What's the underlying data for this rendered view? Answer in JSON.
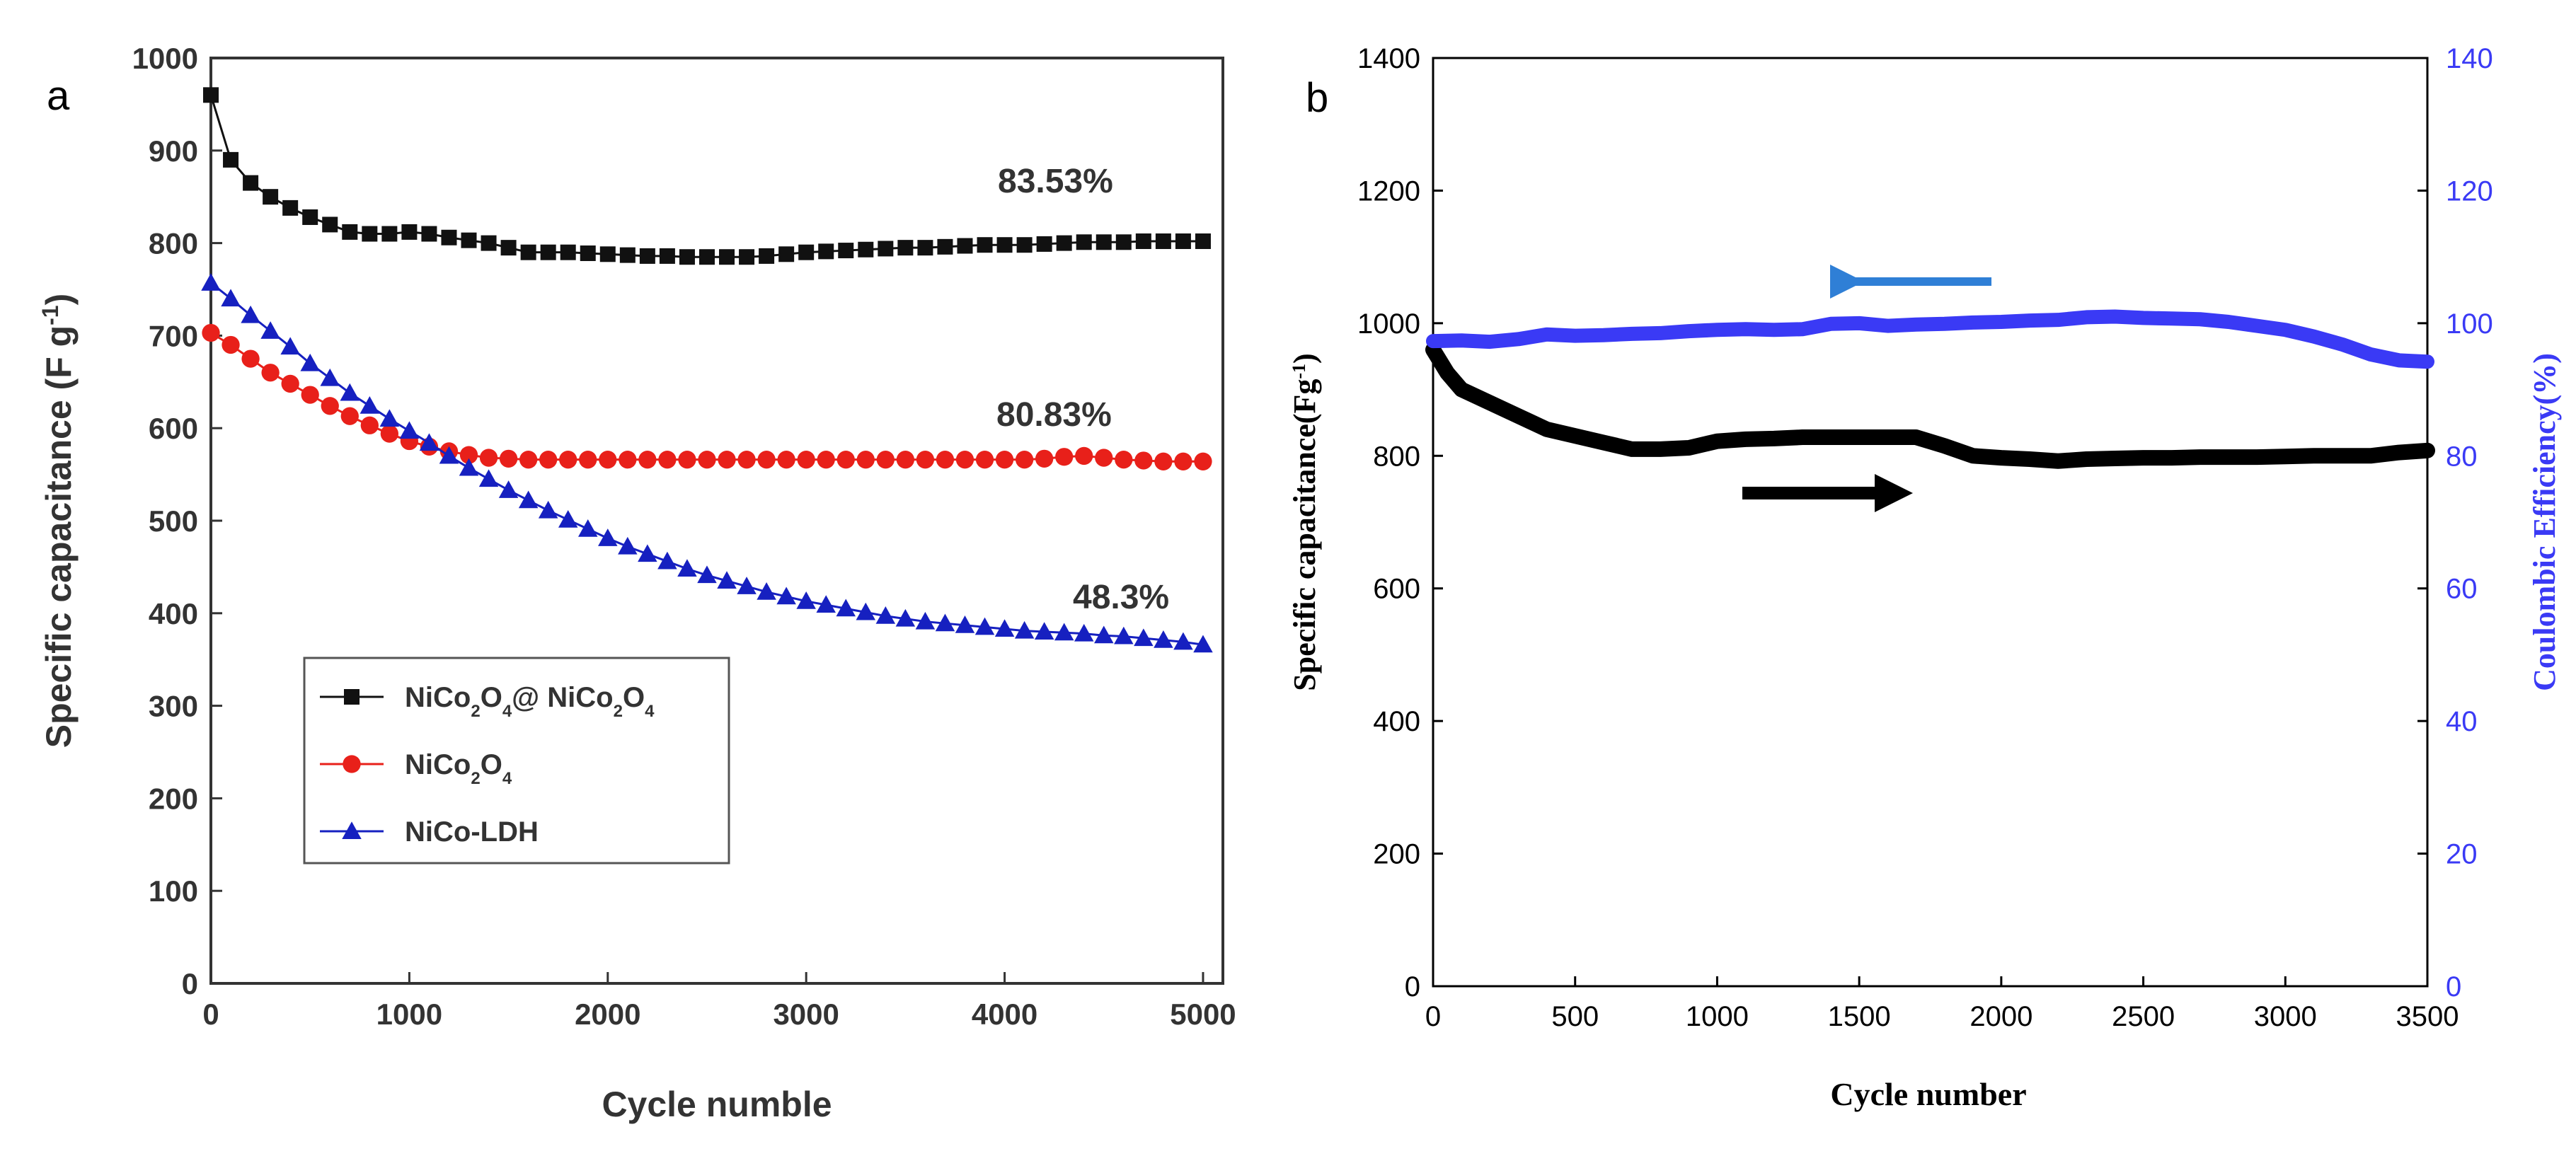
{
  "chart_data": [
    {
      "panel": "a",
      "type": "scatter",
      "xlabel": "Cycle numble",
      "ylabel_html": "Specific capacitance (F g<tspan baseline-shift=\"super\" font-size=\"32\">-1</tspan>)",
      "xlim": [
        0,
        5100
      ],
      "ylim": [
        0,
        1000
      ],
      "xticks": [
        0,
        1000,
        2000,
        3000,
        4000,
        5000
      ],
      "yticks": [
        0,
        100,
        200,
        300,
        400,
        500,
        600,
        700,
        800,
        900,
        1000
      ],
      "grid": false,
      "legend_position": "lower-left",
      "series": [
        {
          "name": "NiCo2O4@ NiCo2O4",
          "label_html": "NiCo<tspan baseline-shift=\"sub\" font-size=\"24\">2</tspan>O<tspan baseline-shift=\"sub\" font-size=\"24\">4</tspan>@ NiCo<tspan baseline-shift=\"sub\" font-size=\"24\">2</tspan>O<tspan baseline-shift=\"sub\" font-size=\"24\">4</tspan>",
          "marker": "square",
          "color": "#111111",
          "x": [
            0,
            100,
            200,
            300,
            400,
            500,
            600,
            700,
            800,
            900,
            1000,
            1100,
            1200,
            1300,
            1400,
            1500,
            1600,
            1700,
            1800,
            1900,
            2000,
            2100,
            2200,
            2300,
            2400,
            2500,
            2600,
            2700,
            2800,
            2900,
            3000,
            3100,
            3200,
            3300,
            3400,
            3500,
            3600,
            3700,
            3800,
            3900,
            4000,
            4100,
            4200,
            4300,
            4400,
            4500,
            4600,
            4700,
            4800,
            4900,
            5000
          ],
          "y": [
            960,
            890,
            865,
            850,
            838,
            828,
            820,
            812,
            810,
            810,
            812,
            810,
            806,
            803,
            800,
            795,
            790,
            790,
            790,
            789,
            788,
            787,
            786,
            786,
            785,
            785,
            785,
            785,
            786,
            788,
            790,
            791,
            792,
            793,
            794,
            795,
            795,
            796,
            797,
            798,
            798,
            798,
            799,
            800,
            801,
            801,
            801,
            802,
            802,
            802,
            802
          ]
        },
        {
          "name": "NiCo2O4",
          "label_html": "NiCo<tspan baseline-shift=\"sub\" font-size=\"24\">2</tspan>O<tspan baseline-shift=\"sub\" font-size=\"24\">4</tspan>",
          "marker": "circle",
          "color": "#e8201a",
          "x": [
            0,
            100,
            200,
            300,
            400,
            500,
            600,
            700,
            800,
            900,
            1000,
            1100,
            1200,
            1300,
            1400,
            1500,
            1600,
            1700,
            1800,
            1900,
            2000,
            2100,
            2200,
            2300,
            2400,
            2500,
            2600,
            2700,
            2800,
            2900,
            3000,
            3100,
            3200,
            3300,
            3400,
            3500,
            3600,
            3700,
            3800,
            3900,
            4000,
            4100,
            4200,
            4300,
            4400,
            4500,
            4600,
            4700,
            4800,
            4900,
            5000
          ],
          "y": [
            703,
            690,
            675,
            660,
            648,
            636,
            624,
            613,
            603,
            594,
            586,
            580,
            575,
            571,
            568,
            567,
            566,
            566,
            566,
            566,
            566,
            566,
            566,
            566,
            566,
            566,
            566,
            566,
            566,
            566,
            566,
            566,
            566,
            566,
            566,
            566,
            566,
            566,
            566,
            566,
            566,
            566,
            567,
            569,
            570,
            568,
            566,
            565,
            564,
            564,
            564
          ]
        },
        {
          "name": "NiCo-LDH",
          "label_html": "NiCo-LDH",
          "marker": "triangle",
          "color": "#1620c0",
          "x": [
            0,
            100,
            200,
            300,
            400,
            500,
            600,
            700,
            800,
            900,
            1000,
            1100,
            1200,
            1300,
            1400,
            1500,
            1600,
            1700,
            1800,
            1900,
            2000,
            2100,
            2200,
            2300,
            2400,
            2500,
            2600,
            2700,
            2800,
            2900,
            3000,
            3100,
            3200,
            3300,
            3400,
            3500,
            3600,
            3700,
            3800,
            3900,
            4000,
            4100,
            4200,
            4300,
            4400,
            4500,
            4600,
            4700,
            4800,
            4900,
            5000
          ],
          "y": [
            757,
            740,
            722,
            705,
            688,
            670,
            654,
            638,
            624,
            610,
            597,
            584,
            570,
            557,
            545,
            533,
            522,
            511,
            501,
            491,
            481,
            472,
            464,
            456,
            448,
            441,
            435,
            429,
            423,
            418,
            413,
            409,
            405,
            401,
            397,
            394,
            391,
            389,
            387,
            385,
            383,
            381,
            380,
            379,
            378,
            376,
            375,
            373,
            371,
            369,
            366
          ]
        }
      ],
      "annotations": [
        "83.53%",
        "80.83%",
        "48.3%"
      ],
      "panel_label": "a"
    },
    {
      "panel": "b",
      "type": "line",
      "xlabel": "Cycle number",
      "ylabel_left_html": "Specific capacitance(Fg<tspan baseline-shift=\"super\" font-size=\"26\">-1</tspan>)",
      "ylabel_right": "Coulombic Efficiency(%)",
      "xlim": [
        0,
        3500
      ],
      "ylim_left": [
        0,
        1400
      ],
      "ylim_right": [
        0,
        140
      ],
      "xticks": [
        0,
        500,
        1000,
        1500,
        2000,
        2500,
        3000,
        3500
      ],
      "yticks_left": [
        0,
        200,
        400,
        600,
        800,
        1000,
        1200,
        1400
      ],
      "yticks_right": [
        0,
        20,
        40,
        60,
        80,
        100,
        120,
        140
      ],
      "grid": false,
      "series": [
        {
          "name": "Specific capacitance",
          "axis": "left",
          "color": "#000000",
          "x": [
            0,
            50,
            100,
            200,
            300,
            400,
            500,
            600,
            700,
            800,
            900,
            1000,
            1100,
            1200,
            1300,
            1400,
            1500,
            1600,
            1700,
            1800,
            1900,
            2000,
            2100,
            2200,
            2300,
            2400,
            2500,
            2600,
            2700,
            2800,
            2900,
            3000,
            3100,
            3200,
            3300,
            3400,
            3500
          ],
          "y": [
            960,
            925,
            900,
            880,
            860,
            840,
            830,
            820,
            810,
            810,
            812,
            822,
            825,
            826,
            828,
            828,
            828,
            828,
            828,
            815,
            800,
            797,
            795,
            792,
            795,
            796,
            797,
            797,
            798,
            798,
            798,
            799,
            800,
            800,
            800,
            805,
            808
          ]
        },
        {
          "name": "Coulombic Efficiency",
          "axis": "right",
          "color": "#3a3af5",
          "x": [
            0,
            100,
            200,
            300,
            400,
            500,
            600,
            700,
            800,
            900,
            1000,
            1100,
            1200,
            1300,
            1400,
            1500,
            1600,
            1700,
            1800,
            1900,
            2000,
            2100,
            2200,
            2300,
            2400,
            2500,
            2600,
            2700,
            2800,
            2900,
            3000,
            3100,
            3200,
            3300,
            3400,
            3500
          ],
          "y": [
            97.3,
            97.4,
            97.2,
            97.6,
            98.3,
            98.1,
            98.2,
            98.4,
            98.5,
            98.8,
            99.0,
            99.1,
            99.0,
            99.1,
            99.9,
            100.0,
            99.6,
            99.8,
            99.9,
            100.1,
            100.2,
            100.4,
            100.5,
            100.9,
            101.0,
            100.8,
            100.7,
            100.6,
            100.2,
            99.6,
            99.0,
            98.0,
            96.8,
            95.3,
            94.4,
            94.2
          ]
        }
      ],
      "panel_label": "b"
    }
  ]
}
